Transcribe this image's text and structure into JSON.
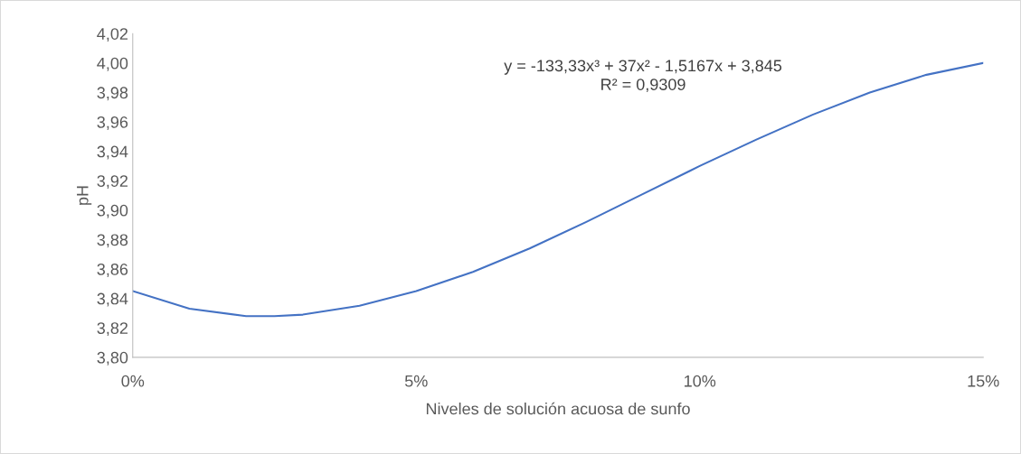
{
  "chart_data": {
    "type": "line",
    "xlabel": "Niveles de solución acuosa de sunfo",
    "ylabel": "pH",
    "annotations": [
      "y = -133,33x³ + 37x² - 1,5167x + 3,845\nR² = 0,9309"
    ],
    "x": [
      0,
      1,
      2,
      2.5,
      3,
      4,
      5,
      6,
      7,
      8,
      9,
      10,
      11,
      12,
      13,
      14,
      15
    ],
    "series": [
      {
        "color": "#4472c4",
        "values": [
          3.845,
          3.833,
          3.828,
          3.828,
          3.829,
          3.835,
          3.845,
          3.858,
          3.874,
          3.892,
          3.911,
          3.93,
          3.948,
          3.965,
          3.98,
          3.992,
          4.0
        ]
      }
    ],
    "xlim": [
      0,
      15
    ],
    "xticks": [
      {
        "value": 0,
        "label": "0%"
      },
      {
        "value": 5,
        "label": "5%"
      },
      {
        "value": 10,
        "label": "10%"
      },
      {
        "value": 15,
        "label": "15%"
      }
    ],
    "ylim": [
      3.8,
      4.02
    ],
    "yticks": [
      {
        "value": 3.8,
        "label": "3,80"
      },
      {
        "value": 3.82,
        "label": "3,82"
      },
      {
        "value": 3.84,
        "label": "3,84"
      },
      {
        "value": 3.86,
        "label": "3,86"
      },
      {
        "value": 3.88,
        "label": "3,88"
      },
      {
        "value": 3.9,
        "label": "3,90"
      },
      {
        "value": 3.92,
        "label": "3,92"
      },
      {
        "value": 3.94,
        "label": "3,94"
      },
      {
        "value": 3.96,
        "label": "3,96"
      },
      {
        "value": 3.98,
        "label": "3,98"
      },
      {
        "value": 4.0,
        "label": "4,00"
      },
      {
        "value": 4.02,
        "label": "4,02"
      }
    ],
    "grid": false,
    "legend": false,
    "marker": "none",
    "line_style": "solid"
  }
}
